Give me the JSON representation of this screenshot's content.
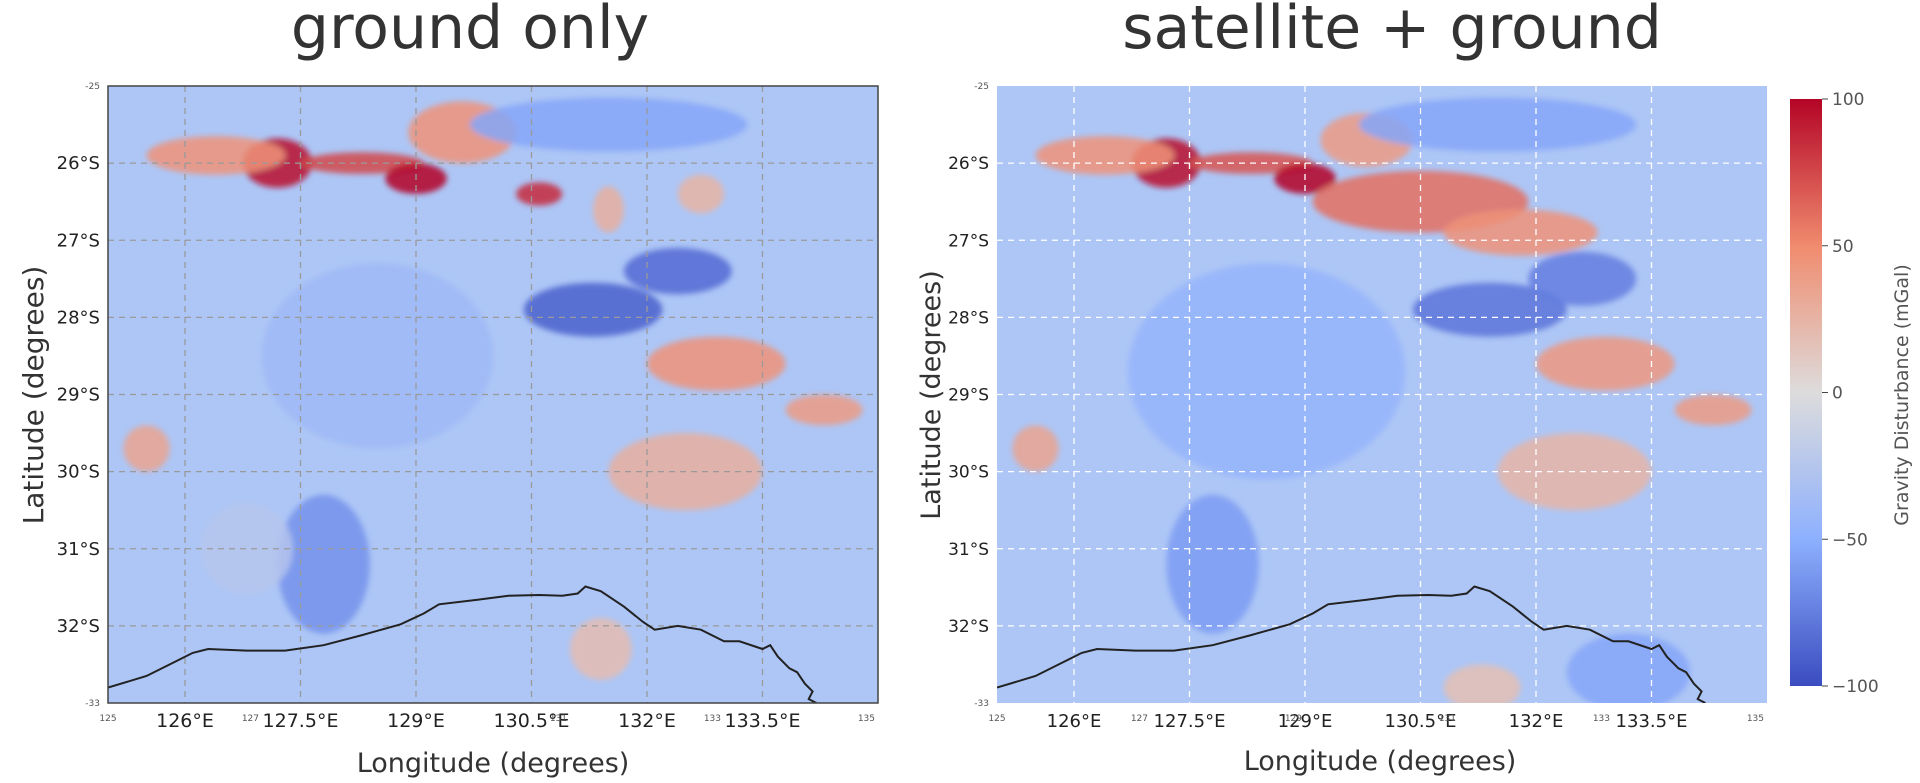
{
  "chart_data": [
    {
      "type": "heatmap",
      "title": "ground only",
      "xlabel": "Longitude (degrees)",
      "ylabel": "Latitude (degrees)",
      "xlim": [
        125,
        135
      ],
      "ylim": [
        -33,
        -25
      ],
      "x_ticks": [
        "126°E",
        "127.5°E",
        "129°E",
        "130.5°E",
        "132°E",
        "133.5°E"
      ],
      "x_ticks_values": [
        126,
        127.5,
        129,
        130.5,
        132,
        133.5
      ],
      "x_minor_ticks": [
        "125",
        "127",
        "131",
        "133",
        "135"
      ],
      "x_minor_values": [
        125,
        127,
        131,
        133,
        135
      ],
      "y_ticks": [
        "26°S",
        "27°S",
        "28°S",
        "29°S",
        "30°S",
        "31°S",
        "32°S"
      ],
      "y_ticks_values": [
        -26,
        -27,
        -28,
        -29,
        -30,
        -31,
        -32
      ],
      "y_minor_ticks": [
        "-25",
        "-33"
      ],
      "y_minor_values": [
        -25,
        -33
      ],
      "grid": true,
      "grid_color": "#9a9a9a",
      "grid_style": "dashed",
      "colormap": "coolwarm",
      "vmin": -100,
      "vmax": 100,
      "features": [
        {
          "lon": 127.2,
          "lat": -26.0,
          "value": 95,
          "sx": 0.45,
          "sy": 0.32
        },
        {
          "lon": 126.4,
          "lat": -25.9,
          "value": 45,
          "sx": 0.9,
          "sy": 0.25
        },
        {
          "lon": 128.3,
          "lat": -26.0,
          "value": 75,
          "sx": 0.8,
          "sy": 0.14
        },
        {
          "lon": 129.0,
          "lat": -26.2,
          "value": 100,
          "sx": 0.4,
          "sy": 0.2
        },
        {
          "lon": 129.6,
          "lat": -25.6,
          "value": 45,
          "sx": 0.7,
          "sy": 0.4
        },
        {
          "lon": 130.6,
          "lat": -26.4,
          "value": 85,
          "sx": 0.3,
          "sy": 0.15
        },
        {
          "lon": 131.5,
          "lat": -26.6,
          "value": 28,
          "sx": 0.2,
          "sy": 0.3
        },
        {
          "lon": 132.7,
          "lat": -26.4,
          "value": 25,
          "sx": 0.3,
          "sy": 0.25
        },
        {
          "lon": 131.3,
          "lat": -27.9,
          "value": -90,
          "sx": 0.9,
          "sy": 0.35
        },
        {
          "lon": 132.4,
          "lat": -27.4,
          "value": -85,
          "sx": 0.7,
          "sy": 0.3
        },
        {
          "lon": 131.5,
          "lat": -25.5,
          "value": -55,
          "sx": 1.8,
          "sy": 0.35
        },
        {
          "lon": 132.9,
          "lat": -28.6,
          "value": 45,
          "sx": 0.9,
          "sy": 0.35
        },
        {
          "lon": 134.3,
          "lat": -29.2,
          "value": 40,
          "sx": 0.5,
          "sy": 0.2
        },
        {
          "lon": 132.5,
          "lat": -30.0,
          "value": 28,
          "sx": 1.0,
          "sy": 0.5
        },
        {
          "lon": 127.8,
          "lat": -31.2,
          "value": -65,
          "sx": 0.6,
          "sy": 0.9
        },
        {
          "lon": 128.5,
          "lat": -28.5,
          "value": -40,
          "sx": 1.5,
          "sy": 1.2
        },
        {
          "lon": 125.5,
          "lat": -29.7,
          "value": 35,
          "sx": 0.3,
          "sy": 0.3
        },
        {
          "lon": 126.8,
          "lat": -31.0,
          "value": -25,
          "sx": 0.6,
          "sy": 0.6
        },
        {
          "lon": 131.4,
          "lat": -32.3,
          "value": 20,
          "sx": 0.4,
          "sy": 0.4
        }
      ]
    },
    {
      "type": "heatmap",
      "title": "satellite + ground",
      "xlabel": "Longitude (degrees)",
      "ylabel": "Latitude (degrees)",
      "xlim": [
        125,
        135
      ],
      "ylim": [
        -33,
        -25
      ],
      "x_ticks": [
        "126°E",
        "127.5°E",
        "129°E",
        "130.5°E",
        "132°E",
        "133.5°E"
      ],
      "x_ticks_values": [
        126,
        127.5,
        129,
        130.5,
        132,
        133.5
      ],
      "x_minor_ticks": [
        "125",
        "127",
        "129",
        "131",
        "133",
        "135"
      ],
      "x_minor_values": [
        125,
        127,
        129,
        131,
        133,
        135
      ],
      "y_ticks": [
        "26°S",
        "27°S",
        "28°S",
        "29°S",
        "30°S",
        "31°S",
        "32°S"
      ],
      "y_ticks_values": [
        -26,
        -27,
        -28,
        -29,
        -30,
        -31,
        -32
      ],
      "y_minor_ticks": [
        "-25",
        "-33"
      ],
      "y_minor_values": [
        -25,
        -33
      ],
      "grid": true,
      "grid_color": "#ffffff",
      "grid_style": "dashed",
      "colormap": "coolwarm",
      "vmin": -100,
      "vmax": 100,
      "colorbar": {
        "label": "Gravity Disturbance (mGal)",
        "ticks": [
          "100",
          "50",
          "0",
          "−50",
          "−100"
        ],
        "tick_values": [
          100,
          50,
          0,
          -50,
          -100
        ]
      },
      "features": [
        {
          "lon": 127.2,
          "lat": -26.0,
          "value": 95,
          "sx": 0.45,
          "sy": 0.32
        },
        {
          "lon": 126.4,
          "lat": -25.9,
          "value": 45,
          "sx": 0.9,
          "sy": 0.25
        },
        {
          "lon": 128.3,
          "lat": -26.0,
          "value": 70,
          "sx": 0.8,
          "sy": 0.14
        },
        {
          "lon": 129.0,
          "lat": -26.2,
          "value": 100,
          "sx": 0.4,
          "sy": 0.2
        },
        {
          "lon": 130.5,
          "lat": -26.5,
          "value": 60,
          "sx": 1.4,
          "sy": 0.4
        },
        {
          "lon": 131.8,
          "lat": -26.9,
          "value": 45,
          "sx": 1.0,
          "sy": 0.3
        },
        {
          "lon": 129.8,
          "lat": -25.7,
          "value": 40,
          "sx": 0.6,
          "sy": 0.35
        },
        {
          "lon": 131.4,
          "lat": -27.9,
          "value": -80,
          "sx": 1.0,
          "sy": 0.35
        },
        {
          "lon": 132.6,
          "lat": -27.5,
          "value": -75,
          "sx": 0.7,
          "sy": 0.35
        },
        {
          "lon": 131.5,
          "lat": -25.5,
          "value": -55,
          "sx": 1.8,
          "sy": 0.35
        },
        {
          "lon": 132.9,
          "lat": -28.6,
          "value": 42,
          "sx": 0.9,
          "sy": 0.35
        },
        {
          "lon": 134.3,
          "lat": -29.2,
          "value": 40,
          "sx": 0.5,
          "sy": 0.2
        },
        {
          "lon": 132.5,
          "lat": -30.0,
          "value": 24,
          "sx": 1.0,
          "sy": 0.5
        },
        {
          "lon": 127.8,
          "lat": -31.2,
          "value": -60,
          "sx": 0.6,
          "sy": 0.9
        },
        {
          "lon": 128.5,
          "lat": -28.7,
          "value": -45,
          "sx": 1.8,
          "sy": 1.4
        },
        {
          "lon": 125.5,
          "lat": -29.7,
          "value": 35,
          "sx": 0.3,
          "sy": 0.3
        },
        {
          "lon": 133.2,
          "lat": -32.6,
          "value": -55,
          "sx": 0.8,
          "sy": 0.5
        },
        {
          "lon": 131.3,
          "lat": -32.8,
          "value": 18,
          "sx": 0.5,
          "sy": 0.3
        }
      ]
    }
  ],
  "coastline": [
    [
      125,
      -32.8
    ],
    [
      125.5,
      -32.65
    ],
    [
      125.9,
      -32.45
    ],
    [
      126.1,
      -32.35
    ],
    [
      126.3,
      -32.3
    ],
    [
      126.8,
      -32.32
    ],
    [
      127.3,
      -32.32
    ],
    [
      127.8,
      -32.25
    ],
    [
      128.3,
      -32.12
    ],
    [
      128.8,
      -31.98
    ],
    [
      129.1,
      -31.84
    ],
    [
      129.3,
      -31.72
    ],
    [
      129.8,
      -31.66
    ],
    [
      130.2,
      -31.61
    ],
    [
      130.6,
      -31.6
    ],
    [
      130.9,
      -31.61
    ],
    [
      131.1,
      -31.58
    ],
    [
      131.2,
      -31.49
    ],
    [
      131.4,
      -31.55
    ],
    [
      131.7,
      -31.75
    ],
    [
      131.95,
      -31.95
    ],
    [
      132.1,
      -32.05
    ],
    [
      132.4,
      -32.0
    ],
    [
      132.7,
      -32.05
    ],
    [
      133.0,
      -32.2
    ],
    [
      133.2,
      -32.2
    ],
    [
      133.5,
      -32.3
    ],
    [
      133.6,
      -32.25
    ],
    [
      133.7,
      -32.4
    ],
    [
      133.85,
      -32.55
    ],
    [
      133.95,
      -32.6
    ],
    [
      134.05,
      -32.75
    ],
    [
      134.15,
      -32.85
    ],
    [
      134.1,
      -32.95
    ],
    [
      134.2,
      -33.0
    ]
  ]
}
